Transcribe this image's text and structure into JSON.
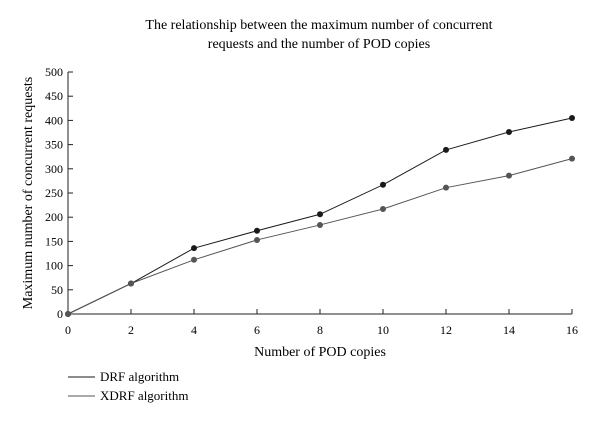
{
  "chart_data": {
    "type": "line",
    "title_lines": [
      "The relationship between the maximum number of concurrent",
      "requests and the number of POD copies"
    ],
    "xlabel": "Number of POD copies",
    "ylabel": "Maximum number of concurrent requests",
    "x": [
      0,
      2,
      4,
      6,
      8,
      10,
      12,
      14,
      16
    ],
    "xticks": [
      0,
      2,
      4,
      6,
      8,
      10,
      12,
      14,
      16
    ],
    "yticks": [
      0,
      50,
      100,
      150,
      200,
      250,
      300,
      350,
      400,
      450,
      500
    ],
    "xlim": [
      0,
      16
    ],
    "ylim": [
      0,
      500
    ],
    "grid": false,
    "legend_position": "bottom-left",
    "series": [
      {
        "name": "DRF algorithm",
        "color": "#1a1a1a",
        "values": [
          0,
          63,
          136,
          172,
          206,
          267,
          339,
          376,
          405
        ]
      },
      {
        "name": "XDRF algorithm",
        "color": "#555555",
        "values": [
          0,
          63,
          112,
          153,
          184,
          217,
          261,
          286,
          321
        ]
      }
    ]
  }
}
